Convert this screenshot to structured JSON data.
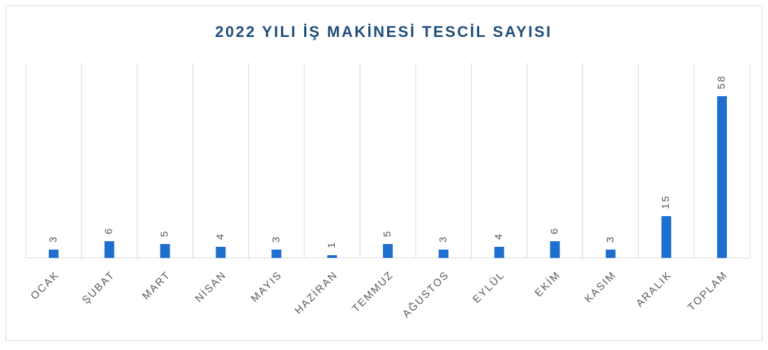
{
  "chart_data": {
    "type": "bar",
    "title": "2022 YILI İŞ MAKİNESİ TESCİL SAYISI",
    "categories": [
      "OCAK",
      "ŞUBAT",
      "MART",
      "NİSAN",
      "MAYIS",
      "HAZİRAN",
      "TEMMUZ",
      "AĞUSTOS",
      "EYLÜL",
      "EKİM",
      "KASIM",
      "ARALIK",
      "TOPLAM"
    ],
    "values": [
      3,
      6,
      5,
      4,
      3,
      1,
      5,
      3,
      4,
      6,
      3,
      15,
      58
    ],
    "color": "#1f6fcf",
    "ylim": [
      0,
      70
    ],
    "grid": true
  }
}
